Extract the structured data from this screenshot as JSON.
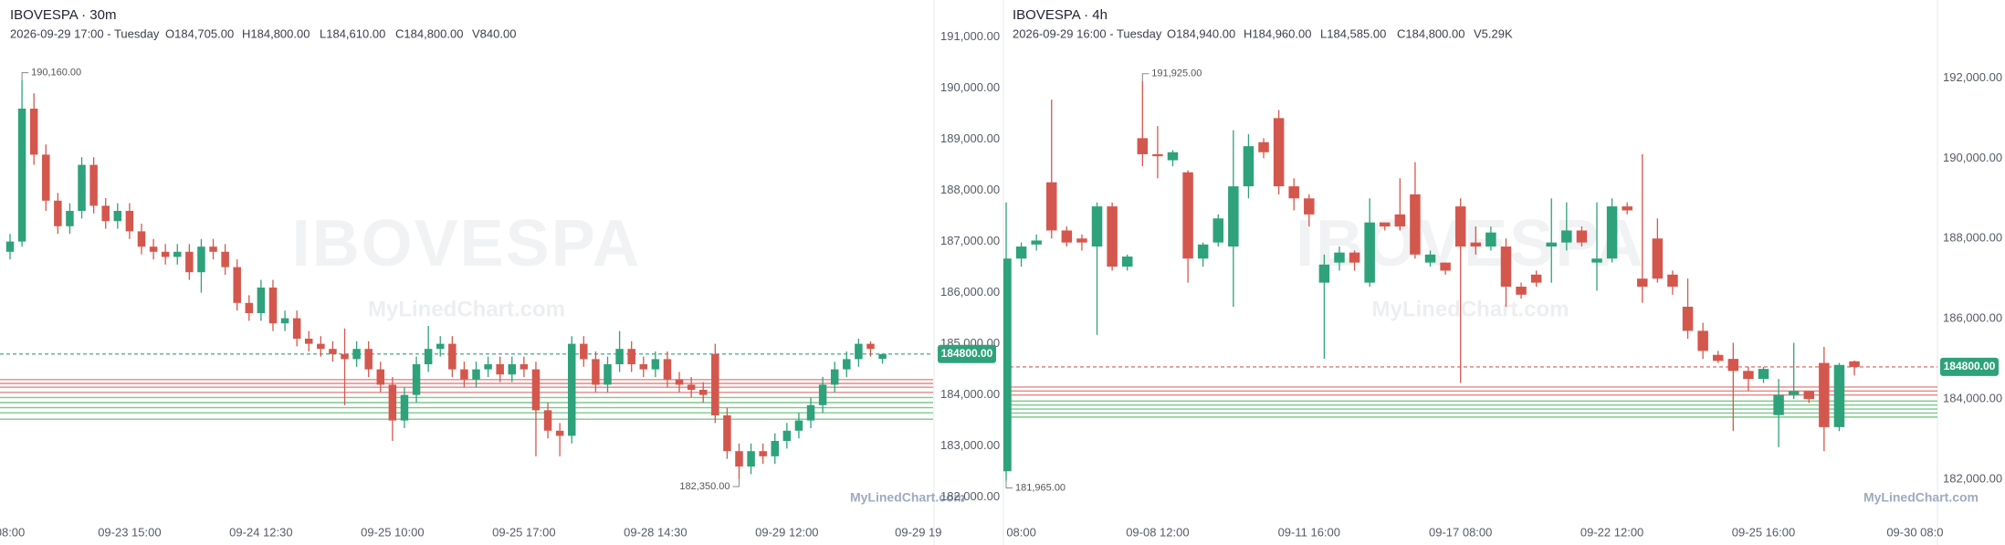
{
  "chart_data": [
    {
      "type": "candlestick",
      "title": "IBOVESPA · 30m",
      "subtitle": "2026-09-29 17:00 - Tuesday",
      "legend": [
        "O184,705.00",
        "H184,800.00",
        "L184,610.00",
        "C184,800.00",
        "V840.00"
      ],
      "watermark": "IBOVESPA",
      "brand": "MyLinedChart.com",
      "up_color": "#2ea27a",
      "down_color": "#d4574d",
      "open": [
        186800,
        187000,
        189600,
        188700,
        187800,
        187300,
        187600,
        188500,
        187700,
        187400,
        187600,
        187200,
        186900,
        186800,
        186700,
        186800,
        186400,
        186900,
        186800,
        186500,
        185800,
        185600,
        186100,
        185400,
        185500,
        185100,
        185000,
        184900,
        184800,
        184700,
        184900,
        184500,
        184200,
        183500,
        184000,
        184600,
        184900,
        185000,
        184500,
        184300,
        184500,
        184600,
        184400,
        184600,
        184500,
        183700,
        183300,
        183200,
        185000,
        184700,
        184200,
        184600,
        184900,
        184600,
        184500,
        184700,
        184300,
        184200,
        184100,
        184800,
        183600,
        182900,
        182600,
        182900,
        182800,
        183100,
        183300,
        183500,
        183800,
        184200,
        184500,
        184700,
        185000,
        184705
      ],
      "high": [
        187150,
        190160,
        189900,
        188900,
        187950,
        187750,
        188650,
        188650,
        187850,
        187750,
        187750,
        187350,
        187050,
        186950,
        186950,
        186950,
        187050,
        187050,
        186950,
        186650,
        185950,
        186250,
        186250,
        185650,
        185650,
        185250,
        185150,
        185050,
        185300,
        185050,
        185050,
        184650,
        184350,
        184150,
        184750,
        185350,
        185150,
        185150,
        184650,
        184650,
        184750,
        184750,
        184750,
        184750,
        184650,
        183850,
        183450,
        185150,
        185150,
        184850,
        184750,
        185250,
        185050,
        184750,
        184850,
        184850,
        184450,
        184350,
        184250,
        185000,
        183750,
        183050,
        183050,
        183050,
        183250,
        183450,
        183650,
        183950,
        184350,
        184650,
        184850,
        185100,
        185050,
        184800
      ],
      "low": [
        186650,
        186900,
        188500,
        187600,
        187150,
        187150,
        187450,
        187550,
        187250,
        187250,
        187050,
        186750,
        186650,
        186550,
        186550,
        186250,
        186000,
        186650,
        186350,
        185650,
        185450,
        185450,
        185250,
        185250,
        184950,
        184850,
        184750,
        184650,
        183800,
        184550,
        184350,
        184050,
        183100,
        183350,
        183850,
        184450,
        184750,
        184350,
        184150,
        184150,
        184350,
        184250,
        184250,
        184350,
        182800,
        183150,
        182800,
        183050,
        184550,
        184050,
        184050,
        184450,
        184450,
        184350,
        184350,
        184150,
        184050,
        183950,
        183850,
        183450,
        182750,
        182350,
        182450,
        182650,
        182650,
        182950,
        183150,
        183350,
        183650,
        184050,
        184350,
        184550,
        184750,
        184610
      ],
      "close": [
        187000,
        189600,
        188700,
        187800,
        187300,
        187600,
        188500,
        187700,
        187400,
        187600,
        187200,
        186900,
        186800,
        186700,
        186800,
        186400,
        186900,
        186800,
        186500,
        185800,
        185600,
        186100,
        185400,
        185500,
        185100,
        185000,
        184900,
        184800,
        184700,
        184900,
        184500,
        184200,
        183500,
        184000,
        184600,
        184900,
        185000,
        184500,
        184300,
        184500,
        184600,
        184400,
        184600,
        184500,
        183700,
        183300,
        183200,
        185000,
        184700,
        184200,
        184600,
        184900,
        184600,
        184500,
        184700,
        184300,
        184200,
        184100,
        184000,
        183600,
        182900,
        182600,
        182900,
        182800,
        183100,
        183300,
        183500,
        183800,
        184200,
        184500,
        184700,
        185000,
        184900,
        184800
      ],
      "high_label": "190,160.00",
      "low_label": "182,350.00",
      "xticks": [
        {
          "value": 0,
          "label": "08:00"
        },
        {
          "value": 10,
          "label": "09-23 15:00"
        },
        {
          "value": 21,
          "label": "09-24 12:30"
        },
        {
          "value": 32,
          "label": "09-25 10:00"
        },
        {
          "value": 43,
          "label": "09-25 17:00"
        },
        {
          "value": 54,
          "label": "09-28 14:30"
        },
        {
          "value": 65,
          "label": "09-29 12:00"
        },
        {
          "value": 76,
          "label": "09-29 19"
        }
      ],
      "ylim": [
        181600,
        191725
      ],
      "yticks": [
        {
          "value": 182000,
          "label": "182,000.00"
        },
        {
          "value": 183000,
          "label": "183,000.00"
        },
        {
          "value": 184000,
          "label": "184,000.00"
        },
        {
          "value": 185000,
          "label": "185,000.00"
        },
        {
          "value": 186000,
          "label": "186,000.00"
        },
        {
          "value": 187000,
          "label": "187,000.00"
        },
        {
          "value": 188000,
          "label": "188,000.00"
        },
        {
          "value": 189000,
          "label": "189,000.00"
        },
        {
          "value": 190000,
          "label": "190,000.00"
        },
        {
          "value": 191000,
          "label": "191,000.00"
        }
      ],
      "levels": [
        {
          "value": 184300,
          "color": "#e08a86"
        },
        {
          "value": 184225,
          "color": "#e08a86"
        },
        {
          "value": 184150,
          "color": "#e08a86"
        },
        {
          "value": 184050,
          "color": "#e08a86"
        },
        {
          "value": 183950,
          "color": "#7cc98a"
        },
        {
          "value": 183850,
          "color": "#7cc98a"
        },
        {
          "value": 183750,
          "color": "#7cc98a"
        },
        {
          "value": 183650,
          "color": "#7cc98a"
        },
        {
          "value": 183525,
          "color": "#7cc98a"
        }
      ],
      "last_price": {
        "value": 184800,
        "label": "184800.00",
        "color": "#2ea27a",
        "line_color": "#2ea27a"
      }
    },
    {
      "type": "candlestick",
      "title": "IBOVESPA · 4h",
      "subtitle": "2026-09-29 16:00 - Tuesday",
      "legend": [
        "O184,940.00",
        "H184,960.00",
        "L184,585.00",
        "C184,800.00",
        "V5.29K"
      ],
      "watermark": "IBOVESPA",
      "brand": "MyLinedChart.com",
      "up_color": "#2ea27a",
      "down_color": "#d4574d",
      "open": [
        182200,
        187500,
        187850,
        189400,
        188200,
        188000,
        187800,
        188800,
        187300,
        190500,
        190100,
        189950,
        189650,
        187500,
        187900,
        187800,
        189300,
        190400,
        191000,
        189300,
        189000,
        186900,
        187400,
        187650,
        186900,
        188400,
        188600,
        189100,
        187400,
        187400,
        188800,
        187900,
        187800,
        187800,
        186800,
        187100,
        187800,
        187900,
        188200,
        187400,
        187500,
        188800,
        187000,
        188000,
        187100,
        186300,
        185700,
        185100,
        185000,
        184700,
        184500,
        183600,
        184100,
        184200,
        184900,
        183300,
        184940
      ],
      "high": [
        188900,
        187900,
        188100,
        191460,
        188300,
        188100,
        188900,
        188900,
        187600,
        191925,
        190800,
        190200,
        189700,
        187900,
        188600,
        190700,
        190600,
        190500,
        191200,
        189500,
        189100,
        187600,
        187800,
        187700,
        189000,
        188400,
        189500,
        189900,
        187700,
        187400,
        189000,
        188300,
        188300,
        188000,
        186900,
        187200,
        189000,
        188900,
        188300,
        188900,
        189000,
        188900,
        190100,
        188500,
        187200,
        187000,
        185900,
        185200,
        185400,
        184800,
        184800,
        184500,
        185400,
        184200,
        185300,
        184900,
        184960
      ],
      "low": [
        181965,
        187300,
        187700,
        188000,
        187800,
        187700,
        185600,
        187200,
        187200,
        189800,
        189500,
        189800,
        186900,
        187300,
        187800,
        186300,
        189000,
        190000,
        189100,
        188700,
        188300,
        185000,
        187200,
        187200,
        186800,
        188200,
        188200,
        187500,
        187300,
        187100,
        184400,
        187600,
        187700,
        186300,
        186500,
        186800,
        186900,
        187700,
        187800,
        186700,
        187400,
        188600,
        186400,
        186900,
        186600,
        185500,
        185000,
        184900,
        183200,
        184200,
        184400,
        182800,
        184000,
        183900,
        182700,
        183200,
        184585
      ],
      "close": [
        187500,
        187800,
        187950,
        188200,
        187900,
        187900,
        188800,
        187300,
        187550,
        190100,
        190050,
        190150,
        187500,
        187850,
        188500,
        189300,
        190300,
        190150,
        189300,
        189000,
        188600,
        187350,
        187650,
        187400,
        188400,
        188300,
        188300,
        187600,
        187600,
        187200,
        187800,
        187800,
        188150,
        186800,
        186600,
        186900,
        187900,
        188200,
        187900,
        187500,
        188800,
        188700,
        186800,
        187000,
        186800,
        185700,
        185200,
        184950,
        184700,
        184500,
        184750,
        184100,
        184200,
        184000,
        183300,
        184850,
        184800
      ],
      "high_label": "191,925.00",
      "low_label": "181,965.00",
      "xticks": [
        {
          "value": 1,
          "label": "08:00"
        },
        {
          "value": 10,
          "label": "09-08 12:00"
        },
        {
          "value": 20,
          "label": "09-11 16:00"
        },
        {
          "value": 30,
          "label": "09-17 08:00"
        },
        {
          "value": 40,
          "label": "09-22 12:00"
        },
        {
          "value": 50,
          "label": "09-25 16:00"
        },
        {
          "value": 60,
          "label": "09-30 08:0"
        }
      ],
      "ylim": [
        181045,
        193943
      ],
      "yticks": [
        {
          "value": 182000,
          "label": "182,000.00"
        },
        {
          "value": 184000,
          "label": "184,000.00"
        },
        {
          "value": 186000,
          "label": "186,000.00"
        },
        {
          "value": 188000,
          "label": "188,000.00"
        },
        {
          "value": 190000,
          "label": "190,000.00"
        },
        {
          "value": 192000,
          "label": "192,000.00"
        }
      ],
      "levels": [
        {
          "value": 184300,
          "color": "#e08a86"
        },
        {
          "value": 184200,
          "color": "#e08a86"
        },
        {
          "value": 184100,
          "color": "#e08a86"
        },
        {
          "value": 183950,
          "color": "#7cc98a"
        },
        {
          "value": 183850,
          "color": "#7cc98a"
        },
        {
          "value": 183750,
          "color": "#7cc98a"
        },
        {
          "value": 183650,
          "color": "#7cc98a"
        },
        {
          "value": 183550,
          "color": "#7cc98a"
        }
      ],
      "last_price": {
        "value": 184800,
        "label": "184800.00",
        "color": "#2ea27a",
        "line_color": "#e0575a"
      }
    }
  ]
}
